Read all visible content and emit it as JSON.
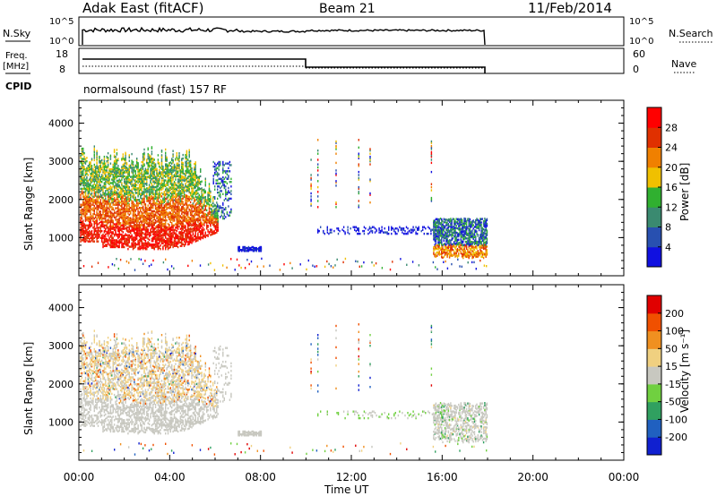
{
  "header": {
    "station": "Adak East (fitACF)",
    "beam": "Beam 21",
    "date": "11/Feb/2014"
  },
  "status_panels": {
    "nsky_label": "N.Sky",
    "nsky_ticks": [
      "10^5",
      "10^0"
    ],
    "nsearch_label": "N.Search",
    "nsearch_ticks": [
      "10^5",
      "10^0"
    ],
    "freq_label_line1": "Freq.",
    "freq_label_line2": "[MHz]",
    "freq_ticks": [
      "18",
      "8"
    ],
    "nave_label": "Nave",
    "nave_ticks": [
      "60",
      "0"
    ],
    "cpid_label": "CPID",
    "cpid_text": "normalsound (fast) 157 RF"
  },
  "chart_data": [
    {
      "type": "heatmap",
      "name": "power",
      "ylabel": "Slant Range [km]",
      "xlabel": "Time UT",
      "x_ticks": [
        "00:00",
        "04:00",
        "08:00",
        "12:00",
        "16:00",
        "20:00",
        "00:00"
      ],
      "x_range_hours": [
        0,
        24
      ],
      "y_ticks": [
        1000,
        2000,
        3000,
        4000
      ],
      "ylim": [
        0,
        4600
      ],
      "colorbar": {
        "label": "Power [dB]",
        "ticks": [
          "4",
          "8",
          "12",
          "16",
          "20",
          "24",
          "28"
        ],
        "colors": [
          "#1010e0",
          "#2850b0",
          "#3a8a70",
          "#30b030",
          "#f0c000",
          "#f08000",
          "#e03000",
          "#ff0000"
        ]
      },
      "regions": [
        {
          "t": [
            0.0,
            6.2
          ],
          "r": [
            700,
            3500
          ],
          "note": "strong scatter, red/orange/green"
        },
        {
          "t": [
            6.0,
            6.6
          ],
          "r": [
            1500,
            3000
          ],
          "note": "sparse blue/green"
        },
        {
          "t": [
            7.0,
            8.0
          ],
          "r": [
            650,
            750
          ],
          "note": "blue patch"
        },
        {
          "t": [
            10.5,
            16.0
          ],
          "r": [
            1100,
            1300
          ],
          "note": "scattered blue"
        },
        {
          "t": [
            15.6,
            18.0
          ],
          "r": [
            400,
            1500
          ],
          "note": "mixed blue/green/orange"
        }
      ]
    },
    {
      "type": "heatmap",
      "name": "velocity",
      "ylabel": "Slant Range [km]",
      "xlabel": "Time UT",
      "x_ticks": [
        "00:00",
        "04:00",
        "08:00",
        "12:00",
        "16:00",
        "20:00",
        "00:00"
      ],
      "x_range_hours": [
        0,
        24
      ],
      "y_ticks": [
        1000,
        2000,
        3000,
        4000
      ],
      "ylim": [
        0,
        4600
      ],
      "colorbar": {
        "label": "Velocity [m s⁻¹]",
        "ticks": [
          "200",
          "100",
          "50",
          "15",
          "-15",
          "-50",
          "-100",
          "-200"
        ],
        "colors": [
          "#1020d0",
          "#2060c0",
          "#30a060",
          "#70d040",
          "#c8c8c0",
          "#f0d080",
          "#f09020",
          "#f05000",
          "#e00000"
        ]
      }
    }
  ],
  "axis_title": "Time UT"
}
